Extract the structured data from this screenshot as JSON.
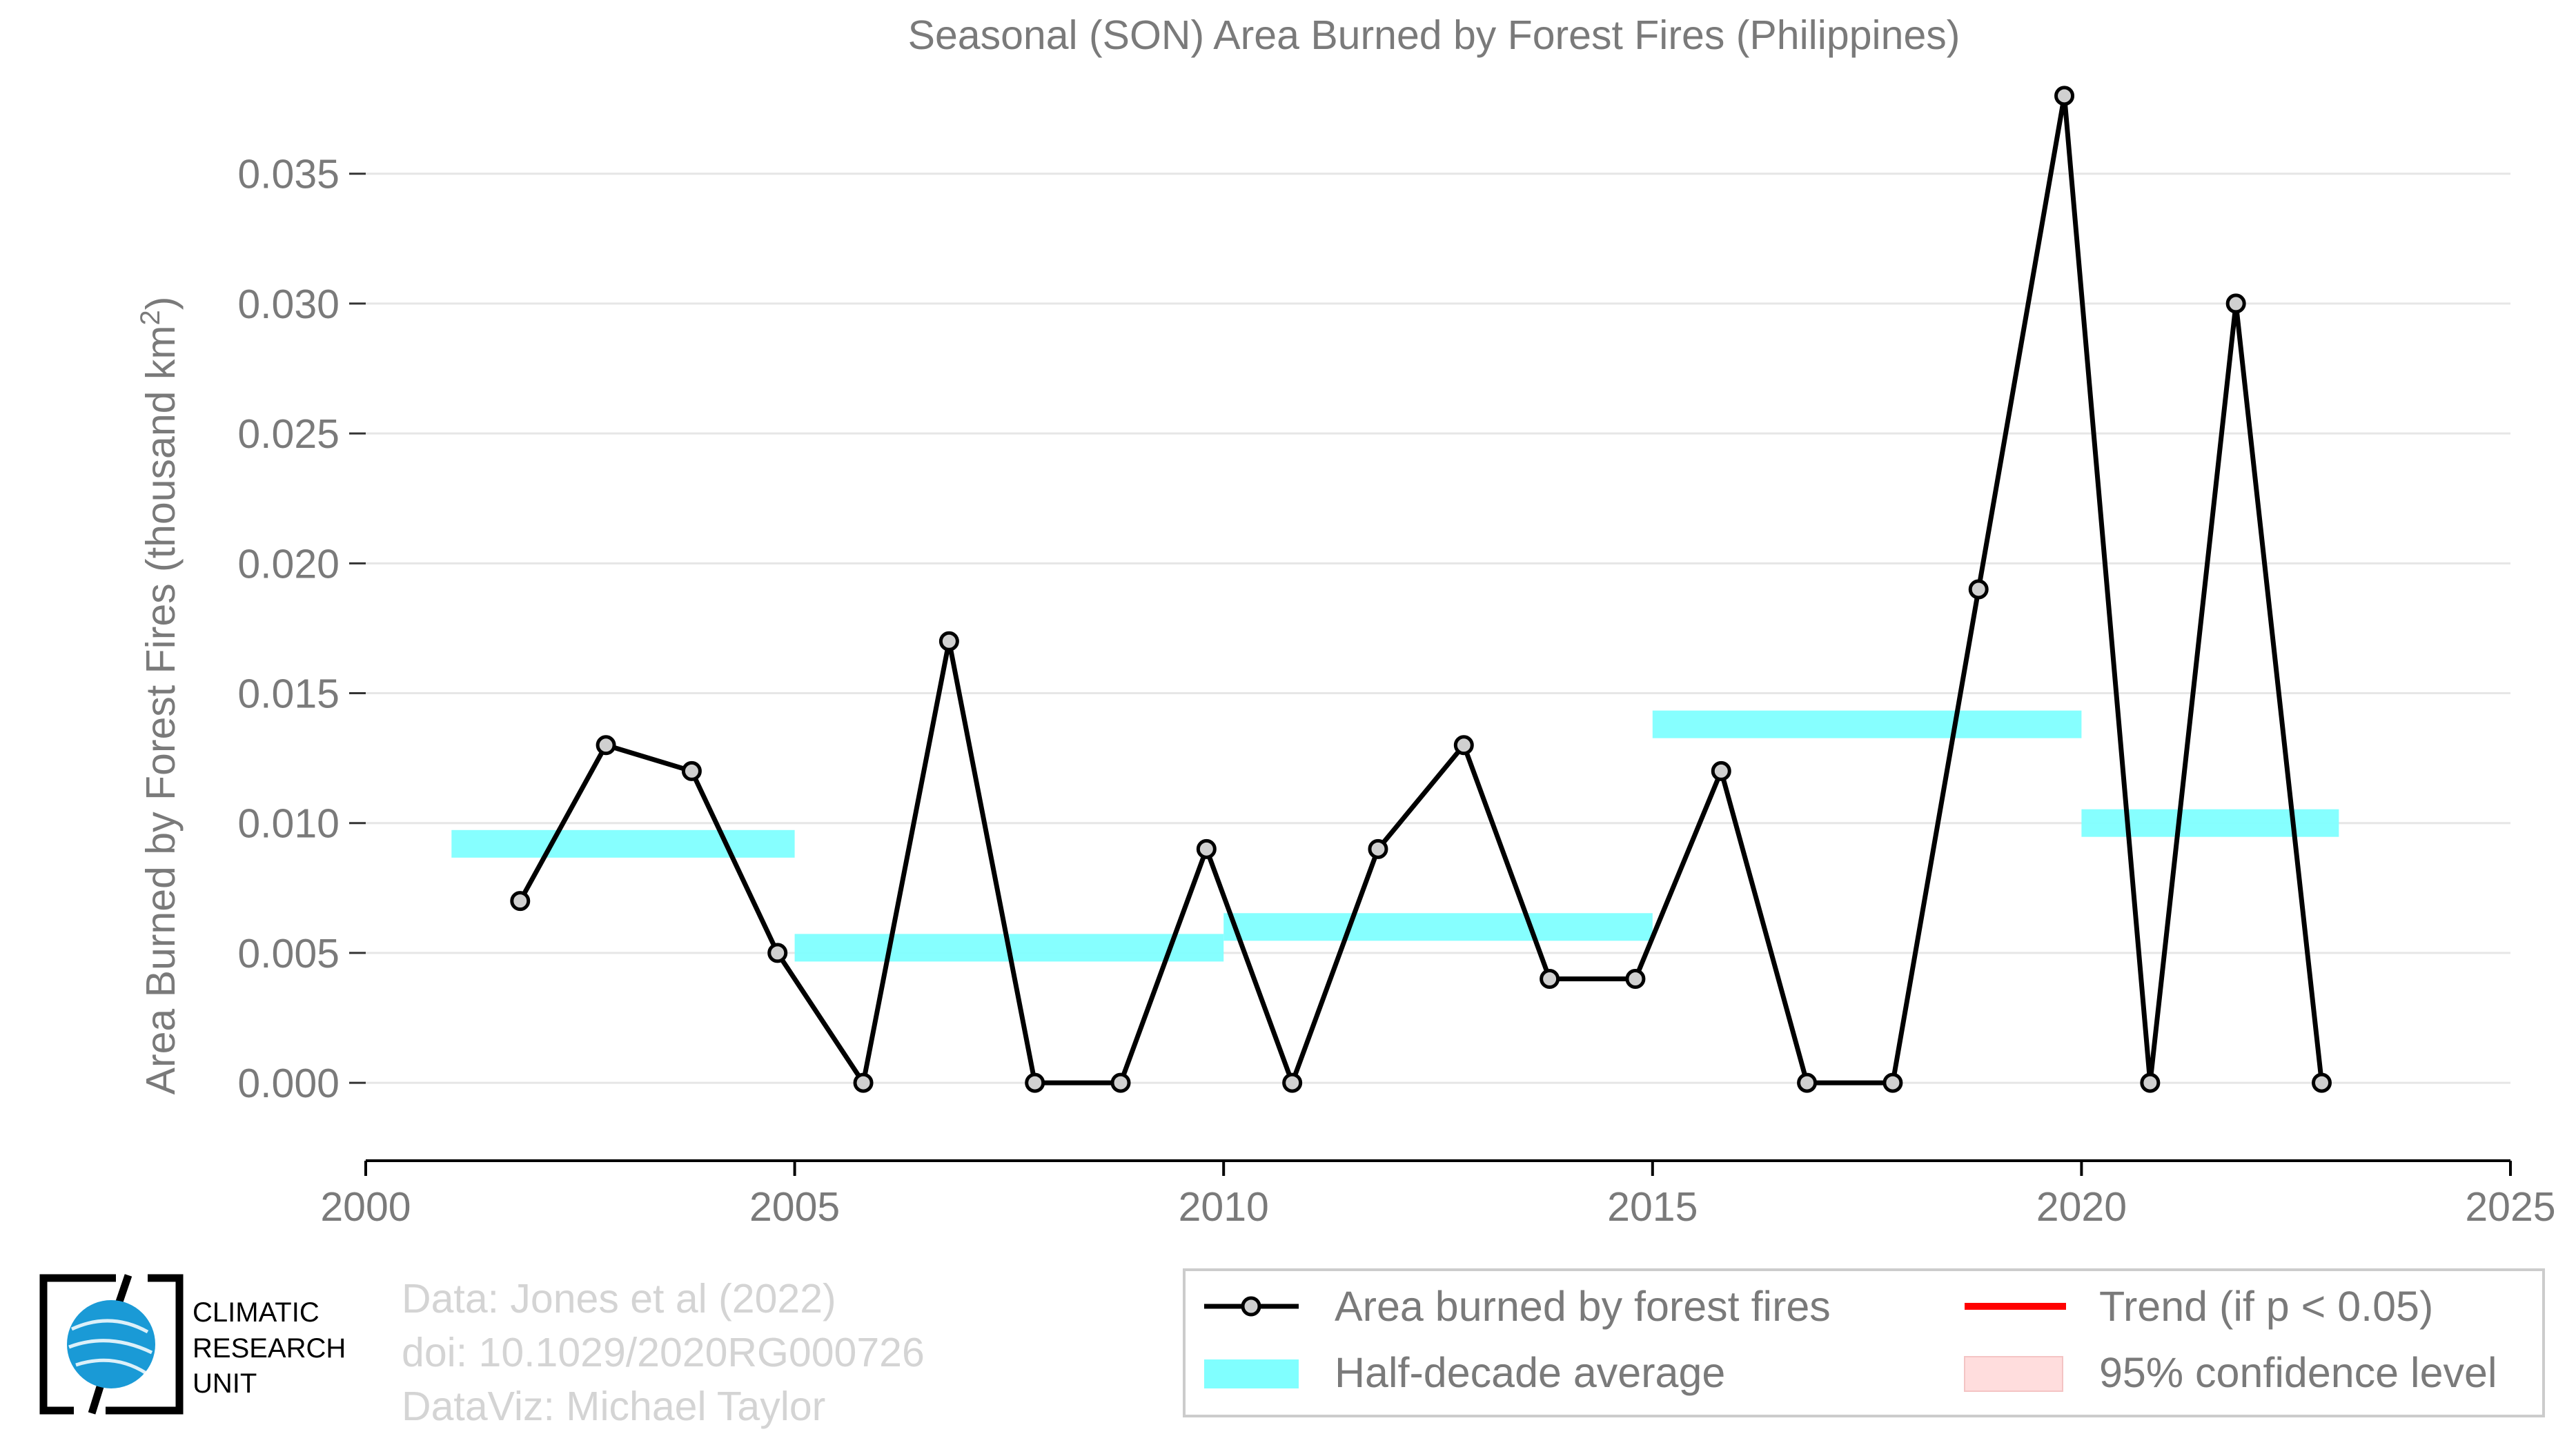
{
  "chart_data": {
    "type": "line",
    "title": "Seasonal (SON) Area Burned by Forest Fires (Philippines)",
    "ylabel": "Area Burned by Forest Fires (thousand km",
    "ylabel_sup": "2",
    "ylabel_end": ")",
    "xlim": [
      2000,
      2025
    ],
    "ylim": [
      -0.003,
      0.0385
    ],
    "x_ticks": [
      "2000",
      "2005",
      "2010",
      "2015",
      "2020",
      "2025"
    ],
    "y_ticks": [
      "0.000",
      "0.005",
      "0.010",
      "0.015",
      "0.020",
      "0.025",
      "0.030",
      "0.035"
    ],
    "grid": true,
    "series": [
      {
        "name": "Area burned by forest fires",
        "color": "#000000",
        "x": [
          2001.8,
          2002.8,
          2003.8,
          2004.8,
          2005.8,
          2006.8,
          2007.8,
          2008.8,
          2009.8,
          2010.8,
          2011.8,
          2012.8,
          2013.8,
          2014.8,
          2015.8,
          2016.8,
          2017.8,
          2018.8,
          2019.8,
          2020.8,
          2021.8,
          2022.8
        ],
        "values": [
          0.007,
          0.013,
          0.012,
          0.005,
          0.0,
          0.017,
          0.0,
          0.0,
          0.009,
          0.0,
          0.009,
          0.013,
          0.004,
          0.004,
          0.012,
          0.0,
          0.0,
          0.019,
          0.038,
          0.0,
          0.03,
          0.0
        ]
      }
    ],
    "half_decade_average": {
      "name": "Half-decade average",
      "color": "#80ffff",
      "segments": [
        {
          "x0": 2001,
          "x1": 2005,
          "y": 0.0092
        },
        {
          "x0": 2005,
          "x1": 2010,
          "y": 0.0052
        },
        {
          "x0": 2010,
          "x1": 2015,
          "y": 0.006
        },
        {
          "x0": 2015,
          "x1": 2020,
          "y": 0.0138
        },
        {
          "x0": 2020,
          "x1": 2023,
          "y": 0.01
        }
      ]
    },
    "legend": {
      "placement": "bottom-right",
      "items": [
        {
          "label": "Area burned by forest fires",
          "kind": "line-marker",
          "color": "#000000"
        },
        {
          "label": "Trend (if p < 0.05)",
          "kind": "line",
          "color": "#ff0000"
        },
        {
          "label": "Half-decade average",
          "kind": "band",
          "color": "#80ffff"
        },
        {
          "label": "95% confidence level",
          "kind": "patch",
          "color": "#ffdddd"
        }
      ]
    }
  },
  "logo": {
    "line1": "CLIMATIC",
    "line2": "RESEARCH",
    "line3": "UNIT",
    "globe_color": "#1a9ad6"
  },
  "credits": {
    "line1": "Data: Jones et al (2022)",
    "line2": "doi: 10.1029/2020RG000726",
    "line3": "DataViz: Michael Taylor"
  }
}
